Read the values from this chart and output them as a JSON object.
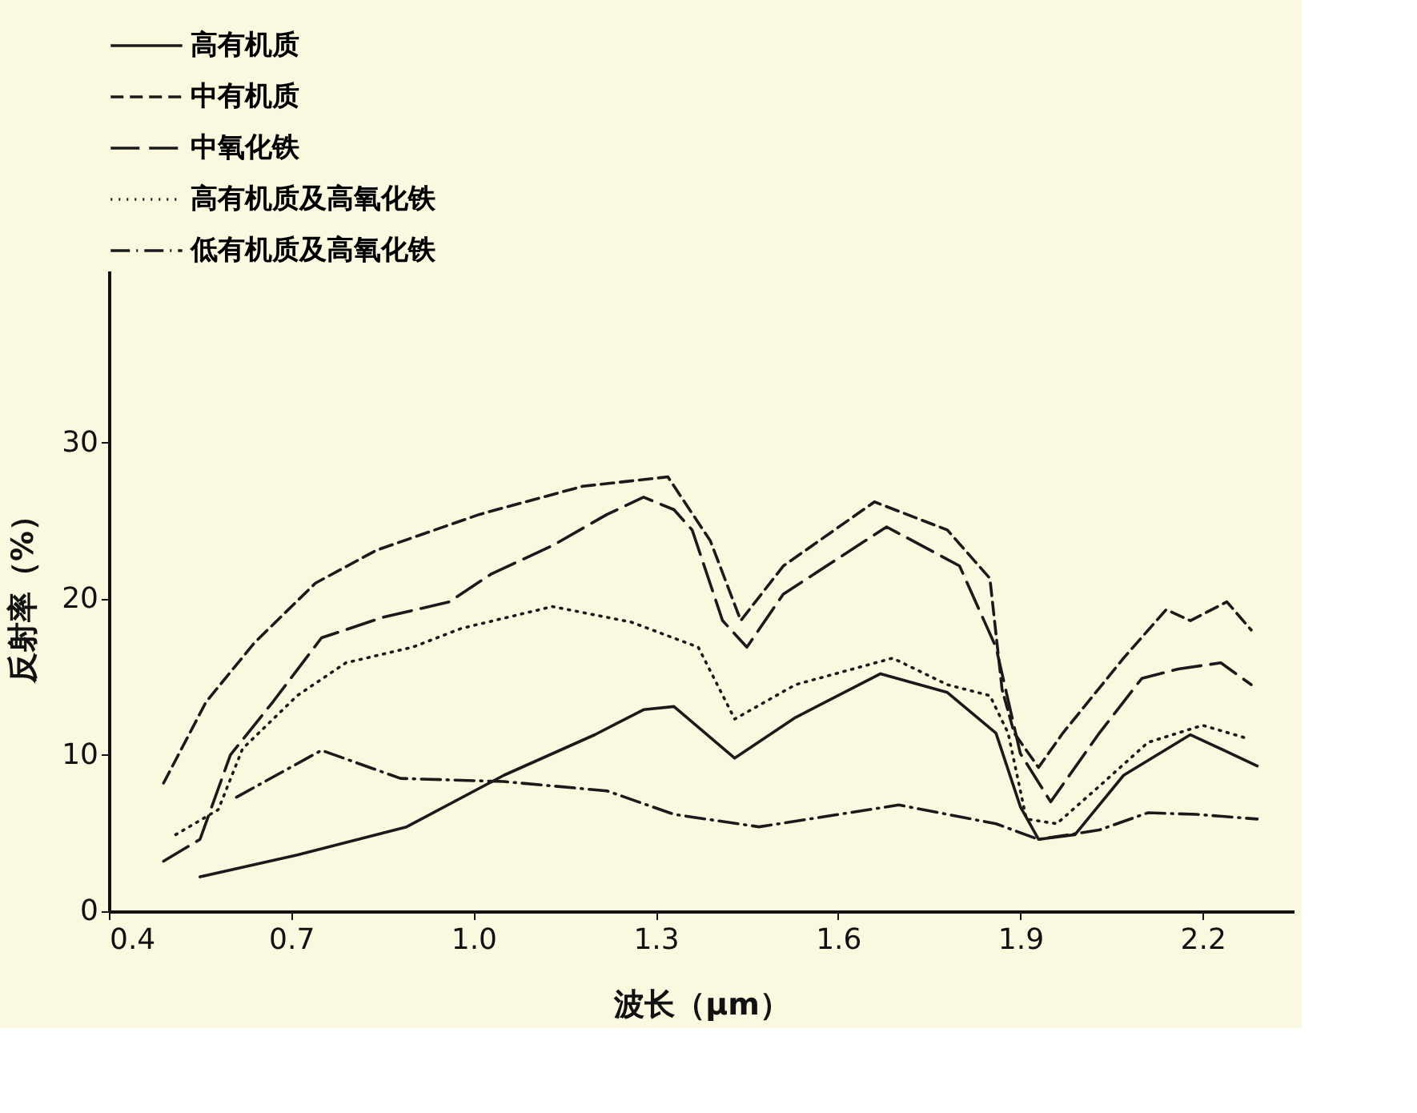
{
  "chart_data": {
    "type": "line",
    "xlabel": "波长（μm）",
    "ylabel": "反射率（%）",
    "xlim": [
      0.4,
      2.35
    ],
    "xticks": [
      0.4,
      0.7,
      {
        "value": 1,
        "label": "1.0"
      },
      1.3,
      1.6,
      1.9,
      2.2
    ],
    "ylim": [
      0,
      41
    ],
    "yticks": [
      0,
      10,
      20,
      30
    ],
    "grid": false,
    "legend": "top",
    "marker": "none",
    "series": [
      {
        "name": "高有机质",
        "color": "#1a1a1a",
        "line_style": "solid",
        "x": [
          0.55,
          0.71,
          0.89,
          1.05,
          1.2,
          1.28,
          1.33,
          1.43,
          1.53,
          1.67,
          1.78,
          1.86,
          1.9,
          1.93,
          1.99,
          2.07,
          2.18,
          2.29
        ],
        "values": [
          2.2,
          3.6,
          5.4,
          8.7,
          11.3,
          12.9,
          13.1,
          9.8,
          12.4,
          15.2,
          14.0,
          11.4,
          6.7,
          4.6,
          4.9,
          8.7,
          11.3,
          9.3
        ]
      },
      {
        "name": "中有机质",
        "color": "#1a1a1a",
        "line_style": "dashed",
        "x": [
          0.49,
          0.56,
          0.64,
          0.74,
          0.84,
          1.01,
          1.18,
          1.32,
          1.39,
          1.44,
          1.51,
          1.66,
          1.78,
          1.85,
          1.87,
          1.89,
          1.93,
          1.97,
          2.07,
          2.14,
          2.18,
          2.24,
          2.28
        ],
        "values": [
          8.2,
          13.4,
          17.2,
          21.0,
          23.1,
          25.4,
          27.2,
          27.8,
          23.7,
          18.6,
          22.1,
          26.2,
          24.4,
          21.3,
          14.2,
          11.4,
          9.2,
          11.4,
          16.2,
          19.3,
          18.6,
          19.8,
          18.0
        ]
      },
      {
        "name": "中氧化铁",
        "color": "#1a1a1a",
        "line_style": "longdash",
        "x": [
          0.49,
          0.55,
          0.6,
          0.67,
          0.75,
          0.85,
          0.96,
          1.03,
          1.13,
          1.22,
          1.28,
          1.33,
          1.36,
          1.41,
          1.45,
          1.51,
          1.68,
          1.8,
          1.86,
          1.9,
          1.95,
          2.03,
          2.1,
          2.16,
          2.23,
          2.28
        ],
        "values": [
          3.2,
          4.6,
          10.0,
          13.4,
          17.5,
          18.8,
          19.8,
          21.6,
          23.4,
          25.4,
          26.5,
          25.7,
          24.4,
          18.6,
          16.9,
          20.3,
          24.6,
          22.1,
          16.9,
          10.1,
          7.0,
          11.4,
          14.9,
          15.5,
          15.9,
          14.5
        ]
      },
      {
        "name": "高有机质及高氧化铁",
        "color": "#1a1a1a",
        "line_style": "dotted",
        "x": [
          0.51,
          0.58,
          0.62,
          0.71,
          0.79,
          0.9,
          0.98,
          1.13,
          1.26,
          1.37,
          1.43,
          1.53,
          1.69,
          1.78,
          1.85,
          1.88,
          1.91,
          1.96,
          2.03,
          2.11,
          2.2,
          2.27
        ],
        "values": [
          4.9,
          6.5,
          10.4,
          13.8,
          15.9,
          16.9,
          18.1,
          19.5,
          18.5,
          16.9,
          12.3,
          14.5,
          16.2,
          14.5,
          13.8,
          11.4,
          5.9,
          5.6,
          8.0,
          10.8,
          11.9,
          11.1
        ]
      },
      {
        "name": "低有机质及高氧化铁",
        "color": "#1a1a1a",
        "line_style": "dashdot",
        "x": [
          0.61,
          0.75,
          0.88,
          1.05,
          1.22,
          1.33,
          1.47,
          1.7,
          1.82,
          1.86,
          1.93,
          2.03,
          2.11,
          2.19,
          2.29
        ],
        "values": [
          7.3,
          10.3,
          8.5,
          8.3,
          7.7,
          6.2,
          5.4,
          6.8,
          5.9,
          5.6,
          4.6,
          5.2,
          6.3,
          6.2,
          5.9
        ]
      }
    ]
  }
}
